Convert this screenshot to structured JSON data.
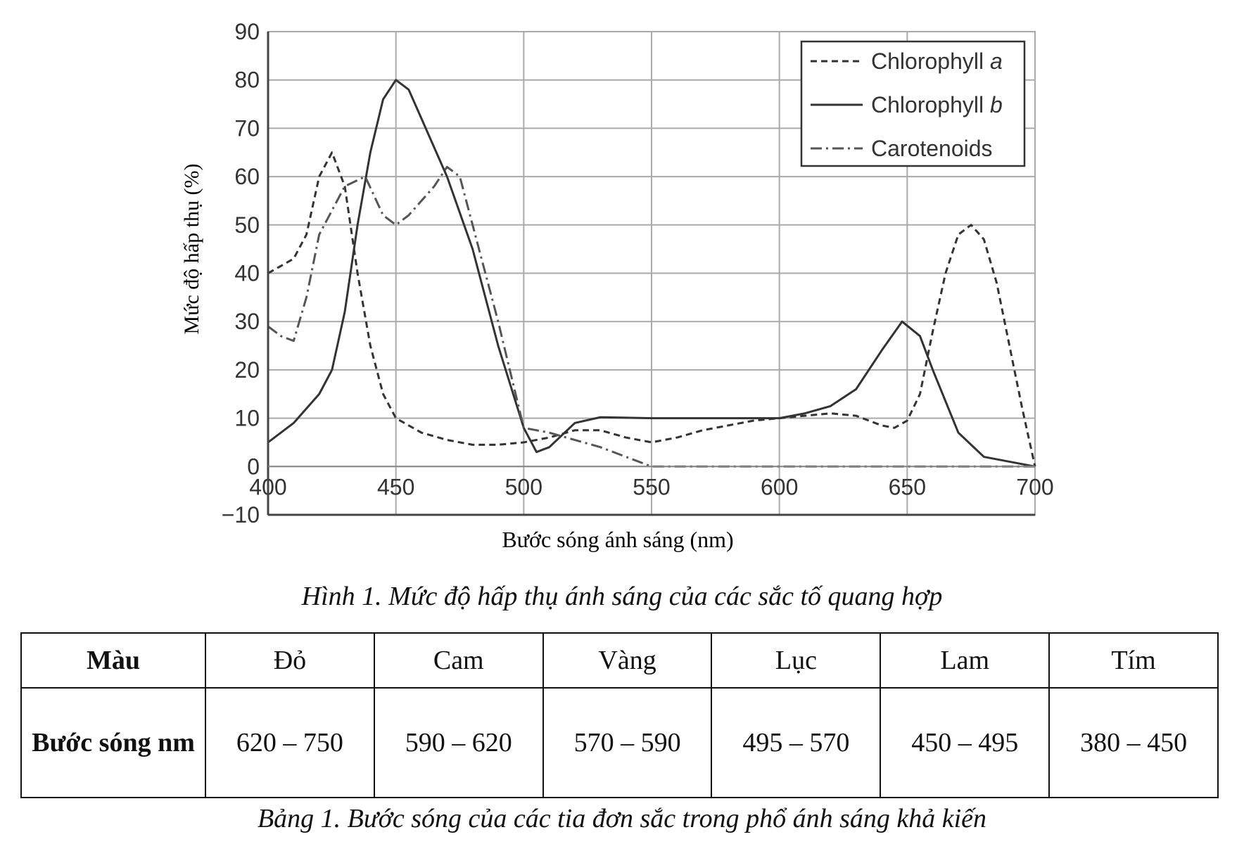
{
  "chart_data": {
    "type": "line",
    "title": "",
    "xlabel": "Bước sóng ánh sáng (nm)",
    "ylabel": "Mức độ hấp thụ (%)",
    "xlim": [
      400,
      700
    ],
    "ylim": [
      -10,
      90
    ],
    "xticks": [
      400,
      450,
      500,
      550,
      600,
      650,
      700
    ],
    "yticks": [
      -10,
      0,
      10,
      20,
      30,
      40,
      50,
      60,
      70,
      80,
      90
    ],
    "ytick_labels": [
      "−10",
      "0",
      "10",
      "20",
      "30",
      "40",
      "50",
      "60",
      "70",
      "80",
      "90"
    ],
    "grid": true,
    "legend_position": "top-right",
    "series": [
      {
        "name": "Chlorophyll",
        "name_italic": "a",
        "style": "dashed",
        "x": [
          400,
          410,
          415,
          420,
          425,
          430,
          435,
          440,
          445,
          450,
          460,
          470,
          480,
          490,
          500,
          510,
          520,
          530,
          540,
          550,
          560,
          570,
          580,
          590,
          600,
          610,
          620,
          630,
          640,
          645,
          650,
          655,
          660,
          665,
          670,
          675,
          680,
          685,
          690,
          695,
          700
        ],
        "y": [
          40,
          43,
          48,
          60,
          65,
          58,
          40,
          25,
          15,
          10,
          7,
          5.5,
          4.5,
          4.5,
          5,
          6,
          7.5,
          7.5,
          6,
          5,
          6,
          7.5,
          8.5,
          9.5,
          10,
          10.5,
          11,
          10.5,
          8.5,
          8,
          9.5,
          15,
          28,
          40,
          48,
          50,
          47,
          38,
          25,
          12,
          0
        ]
      },
      {
        "name": "Chlorophyll",
        "name_italic": "b",
        "style": "solid",
        "x": [
          400,
          410,
          420,
          425,
          430,
          435,
          440,
          445,
          450,
          455,
          460,
          470,
          480,
          490,
          500,
          505,
          510,
          520,
          530,
          550,
          580,
          600,
          610,
          620,
          630,
          640,
          648,
          655,
          660,
          670,
          680,
          700
        ],
        "y": [
          5,
          9,
          15,
          20,
          32,
          50,
          65,
          76,
          80,
          78,
          72,
          60,
          45,
          25,
          8,
          3,
          4,
          9,
          10.2,
          10,
          10,
          10,
          11,
          12.5,
          16,
          24,
          30,
          27,
          20,
          7,
          2,
          0
        ]
      },
      {
        "name": "Carotenoids",
        "name_italic": "",
        "style": "dashdot",
        "x": [
          400,
          405,
          410,
          415,
          420,
          430,
          438,
          445,
          450,
          455,
          465,
          470,
          475,
          480,
          490,
          500,
          510,
          520,
          530,
          540,
          550,
          560,
          700
        ],
        "y": [
          29,
          27,
          26,
          35,
          48,
          58,
          60,
          52,
          50,
          52,
          58,
          62,
          60,
          50,
          30,
          8,
          7,
          5.5,
          4,
          2,
          0,
          0,
          0
        ]
      }
    ]
  },
  "figure_caption": "Hình 1. Mức độ hấp thụ ánh sáng của các sắc tố quang hợp",
  "table": {
    "row_headers": [
      "Màu",
      "Bước sóng nm"
    ],
    "colors": [
      "Đỏ",
      "Cam",
      "Vàng",
      "Lục",
      "Lam",
      "Tím"
    ],
    "wavelengths": [
      "620 – 750",
      "590 – 620",
      "570 – 590",
      "495 – 570",
      "450 – 495",
      "380 – 450"
    ]
  },
  "table_caption": "Bảng 1. Bước sóng của các tia đơn sắc trong phổ ánh sáng khả kiến"
}
